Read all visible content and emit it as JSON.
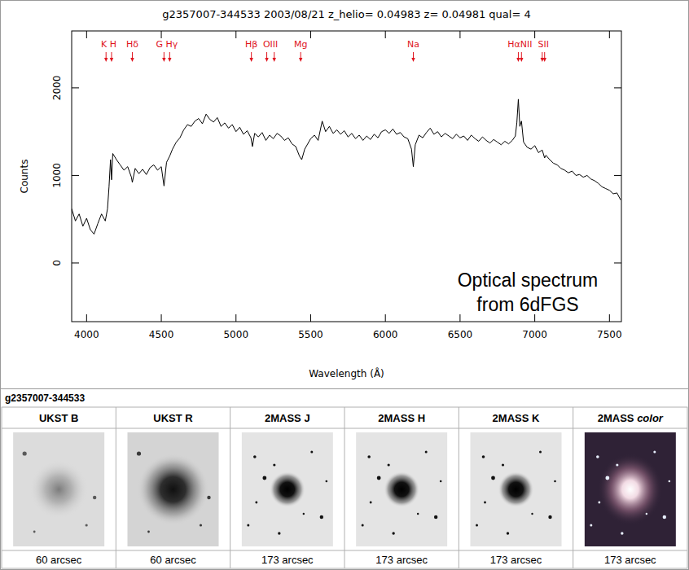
{
  "chart_data": {
    "type": "line",
    "title": "g2357007-344533 2003/08/21 z_helio= 0.04983 z= 0.04981 qual= 4",
    "x_label": "Wavelength (Å)",
    "y_label": "Counts",
    "xlim": [
      3900,
      7580
    ],
    "ylim": [
      -670,
      2650
    ],
    "xticks": [
      4000,
      4500,
      5000,
      5500,
      6000,
      6500,
      7000,
      7500
    ],
    "yticks": [
      0,
      1000,
      2000
    ],
    "x": [
      3900,
      3925,
      3950,
      3975,
      4000,
      4025,
      4050,
      4075,
      4100,
      4125,
      4140,
      4150,
      4160,
      4167,
      4175,
      4200,
      4225,
      4250,
      4275,
      4300,
      4306,
      4325,
      4350,
      4375,
      4400,
      4425,
      4450,
      4475,
      4500,
      4518,
      4535,
      4556,
      4575,
      4600,
      4625,
      4650,
      4675,
      4700,
      4725,
      4750,
      4775,
      4800,
      4825,
      4850,
      4875,
      4900,
      4925,
      4950,
      4975,
      5000,
      5025,
      5050,
      5075,
      5100,
      5110,
      5125,
      5150,
      5175,
      5200,
      5225,
      5250,
      5275,
      5300,
      5325,
      5350,
      5375,
      5400,
      5425,
      5440,
      5460,
      5500,
      5525,
      5550,
      5577,
      5600,
      5625,
      5650,
      5675,
      5700,
      5725,
      5750,
      5775,
      5800,
      5825,
      5850,
      5875,
      5900,
      5925,
      5950,
      5975,
      6000,
      6025,
      6050,
      6075,
      6100,
      6125,
      6150,
      6175,
      6187,
      6200,
      6225,
      6250,
      6275,
      6300,
      6325,
      6350,
      6375,
      6400,
      6425,
      6450,
      6475,
      6500,
      6525,
      6550,
      6575,
      6600,
      6625,
      6650,
      6675,
      6700,
      6725,
      6750,
      6775,
      6800,
      6825,
      6850,
      6870,
      6880,
      6890,
      6900,
      6911,
      6925,
      6950,
      6975,
      7000,
      7025,
      7050,
      7066,
      7075,
      7100,
      7125,
      7150,
      7175,
      7200,
      7225,
      7250,
      7275,
      7300,
      7325,
      7350,
      7375,
      7400,
      7425,
      7450,
      7475,
      7500,
      7525,
      7550,
      7575
    ],
    "series": [
      {
        "color": "#000000",
        "values": [
          620,
          480,
          560,
          420,
          510,
          380,
          330,
          450,
          560,
          480,
          620,
          870,
          1180,
          950,
          1250,
          1180,
          1120,
          1060,
          1100,
          980,
          920,
          1080,
          1020,
          1070,
          1010,
          1090,
          1120,
          1060,
          1100,
          880,
          1150,
          1220,
          1300,
          1380,
          1430,
          1520,
          1580,
          1560,
          1620,
          1650,
          1590,
          1700,
          1640,
          1610,
          1660,
          1560,
          1600,
          1540,
          1580,
          1500,
          1550,
          1470,
          1510,
          1430,
          1330,
          1480,
          1440,
          1490,
          1400,
          1460,
          1420,
          1480,
          1450,
          1400,
          1430,
          1360,
          1330,
          1220,
          1180,
          1300,
          1420,
          1460,
          1400,
          1620,
          1500,
          1560,
          1480,
          1520,
          1470,
          1510,
          1440,
          1480,
          1420,
          1460,
          1400,
          1450,
          1410,
          1470,
          1430,
          1500,
          1520,
          1480,
          1530,
          1470,
          1490,
          1440,
          1420,
          1300,
          1100,
          1350,
          1460,
          1430,
          1490,
          1540,
          1470,
          1500,
          1440,
          1480,
          1450,
          1420,
          1470,
          1430,
          1450,
          1400,
          1460,
          1420,
          1390,
          1440,
          1400,
          1370,
          1410,
          1380,
          1350,
          1390,
          1360,
          1400,
          1450,
          1600,
          1870,
          1560,
          1620,
          1380,
          1320,
          1300,
          1340,
          1260,
          1290,
          1200,
          1230,
          1180,
          1140,
          1120,
          1080,
          1060,
          1030,
          1050,
          1000,
          1010,
          980,
          1000,
          960,
          940,
          910,
          870,
          850,
          830,
          790,
          800,
          720
        ]
      }
    ],
    "annotations": [
      {
        "text": "K H",
        "x": [
          4130,
          4167
        ]
      },
      {
        "text": "Hδ",
        "x": [
          4306
        ]
      },
      {
        "text": "G Hγ",
        "x": [
          4518,
          4556
        ]
      },
      {
        "text": "Hβ",
        "x": [
          5103
        ]
      },
      {
        "text": "OIII",
        "x": [
          5206,
          5256
        ]
      },
      {
        "text": "Mg",
        "x": [
          5433
        ]
      },
      {
        "text": "Na",
        "x": [
          6187
        ]
      },
      {
        "text": "HαNII",
        "x": [
          6890,
          6911
        ]
      },
      {
        "text": "SII",
        "x": [
          7050,
          7066
        ]
      }
    ],
    "overlay_text": [
      "Optical spectrum",
      "from 6dFGS"
    ]
  },
  "panel": {
    "title": "g2357007-344533",
    "columns": [
      {
        "header": "UKST B",
        "caption": "60 arcsec"
      },
      {
        "header": "UKST R",
        "caption": "60 arcsec"
      },
      {
        "header": "2MASS J",
        "caption": "173 arcsec"
      },
      {
        "header": "2MASS H",
        "caption": "173 arcsec"
      },
      {
        "header": "2MASS K",
        "caption": "173 arcsec"
      },
      {
        "header": "2MASS color",
        "caption": "173 arcsec"
      }
    ]
  }
}
